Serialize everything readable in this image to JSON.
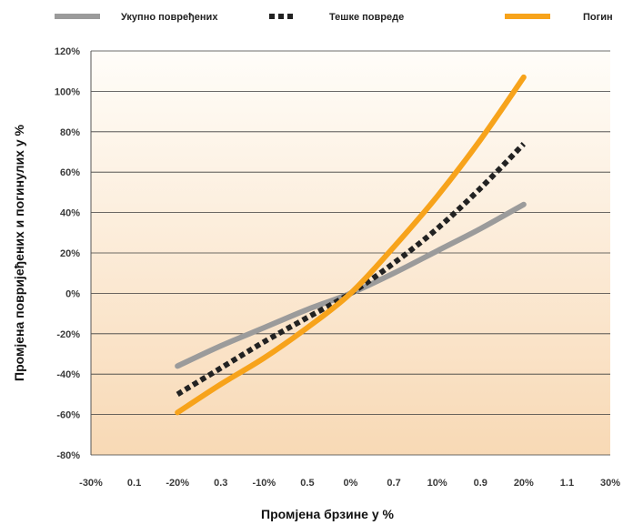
{
  "chart_data": {
    "type": "line",
    "title": "",
    "xlabel": "Промјена брзине у %",
    "ylabel": "Промјена повријеђених и погинулих у %",
    "x_tick_labels": [
      "-30%",
      "0.1",
      "-20%",
      "0.3",
      "-10%",
      "0.5",
      "0%",
      "0.7",
      "10%",
      "0.9",
      "20%",
      "1.1",
      "30%"
    ],
    "y_tick_labels": [
      "-80%",
      "-60%",
      "-40%",
      "-20%",
      "0%",
      "20%",
      "40%",
      "60%",
      "80%",
      "100%",
      "120%"
    ],
    "xlim": [
      -30,
      30
    ],
    "ylim": [
      -80,
      120
    ],
    "grid": "horizontal",
    "legend_position": "top",
    "x": [
      -20,
      -15,
      -10,
      -5,
      0,
      5,
      10,
      15,
      20
    ],
    "series": [
      {
        "name": "Укупно повређених",
        "style": "solid",
        "color": "#9b9b9b",
        "values": [
          -36,
          -26,
          -17,
          -8,
          0,
          10,
          21,
          32,
          44
        ]
      },
      {
        "name": "Тешке повреде",
        "style": "dotted",
        "color": "#222222",
        "values": [
          -50,
          -37,
          -24,
          -12,
          0,
          15,
          32,
          52,
          74
        ]
      },
      {
        "name": "Погин",
        "style": "solid",
        "color": "#f7a31b",
        "values": [
          -59,
          -45,
          -32,
          -17,
          0,
          23,
          48,
          76,
          107
        ]
      }
    ]
  }
}
